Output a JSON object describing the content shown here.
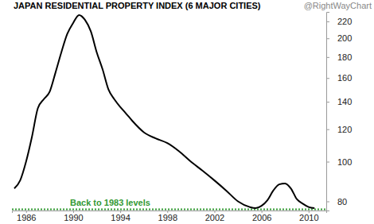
{
  "chart_data": {
    "type": "line",
    "title": "JAPAN RESIDENTIAL PROPERTY INDEX (6 MAJOR CITIES)",
    "subtitle": "@RightWayChart",
    "x": [
      1985,
      1985.5,
      1986,
      1986.5,
      1987,
      1987.5,
      1988,
      1988.5,
      1989,
      1989.5,
      1990,
      1990.5,
      1991,
      1991.5,
      1992,
      1992.5,
      1993,
      1993.5,
      1994,
      1994.5,
      1995,
      1996,
      1997,
      1998,
      1999,
      2000,
      2001,
      2002,
      2003,
      2004,
      2005,
      2005.5,
      2006,
      2006.5,
      2007,
      2007.5,
      2008,
      2008.5,
      2009,
      2009.5,
      2010,
      2010.5
    ],
    "values": [
      86,
      90,
      100,
      115,
      135,
      142,
      148,
      165,
      185,
      205,
      218,
      228,
      222,
      208,
      185,
      168,
      150,
      142,
      136,
      131,
      126,
      118,
      114,
      111,
      106,
      100,
      95,
      90,
      85,
      80,
      77.5,
      77,
      78,
      80.5,
      85,
      88,
      88.5,
      86,
      81,
      79,
      77.5,
      77
    ],
    "color": "#000000",
    "xlim": [
      1984.8,
      2011.5
    ],
    "xticks": [
      1986,
      1990,
      1994,
      1998,
      2002,
      2006,
      2010
    ],
    "ylim": [
      76,
      232
    ],
    "yticks": [
      80,
      100,
      120,
      140,
      160,
      180,
      200,
      220
    ],
    "log": "y",
    "grid": false,
    "annotations": [
      {
        "text": "Back to 1983 levels",
        "value": 76.5,
        "color": "#339933",
        "line_style": "dotted"
      }
    ]
  }
}
